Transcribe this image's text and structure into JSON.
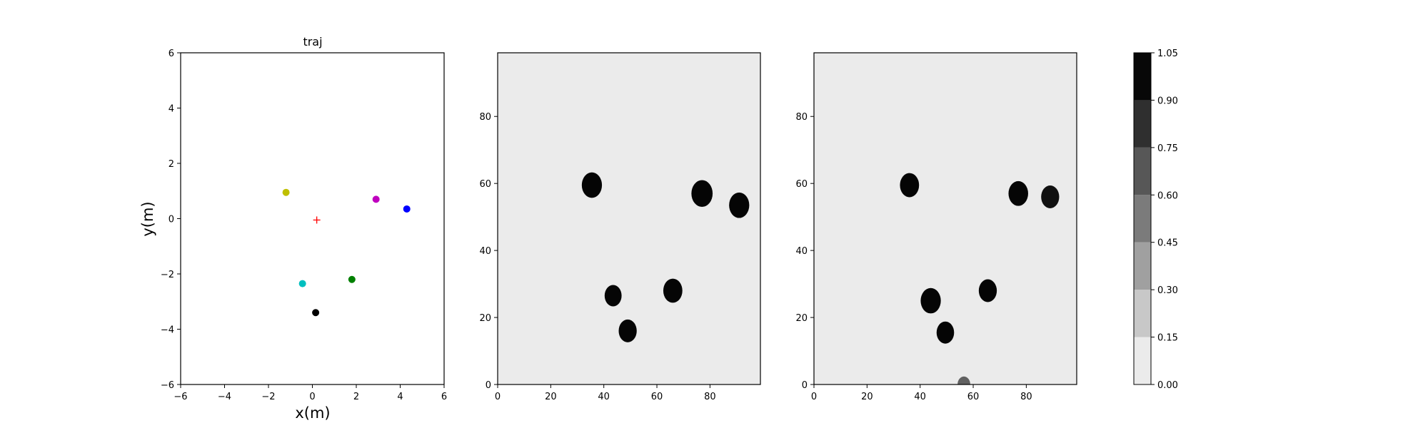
{
  "chart_data": [
    {
      "type": "scatter",
      "title": "traj",
      "xlabel": "x(m)",
      "ylabel": "y(m)",
      "xlim": [
        -6,
        6
      ],
      "ylim": [
        -6,
        6
      ],
      "xticks": [
        "−6",
        "−4",
        "−2",
        "0",
        "2",
        "4",
        "6"
      ],
      "yticks": [
        "−6",
        "−4",
        "−2",
        "0",
        "2",
        "4",
        "6"
      ],
      "grid": false,
      "points": [
        {
          "x": -1.2,
          "y": 0.95,
          "color": "#bfbf00",
          "marker": "circle"
        },
        {
          "x": 2.9,
          "y": 0.7,
          "color": "#bf00bf",
          "marker": "circle"
        },
        {
          "x": 4.3,
          "y": 0.35,
          "color": "#0000ff",
          "marker": "circle"
        },
        {
          "x": 1.8,
          "y": -2.2,
          "color": "#008000",
          "marker": "circle"
        },
        {
          "x": -0.45,
          "y": -2.35,
          "color": "#00bfbf",
          "marker": "circle"
        },
        {
          "x": 0.15,
          "y": -3.4,
          "color": "#000000",
          "marker": "circle"
        },
        {
          "x": 0.2,
          "y": -0.05,
          "color": "#ff0000",
          "marker": "plus"
        }
      ]
    },
    {
      "type": "heatmap",
      "title": "",
      "xlim": [
        0,
        99
      ],
      "ylim": [
        0,
        99
      ],
      "xticks": [
        "0",
        "20",
        "40",
        "60",
        "80"
      ],
      "yticks": [
        "0",
        "20",
        "40",
        "60",
        "80"
      ],
      "background_value": 0.0,
      "blobs": [
        {
          "x": 35.5,
          "y": 59.5,
          "r": 3.8,
          "value": 1.0
        },
        {
          "x": 43.5,
          "y": 26.5,
          "r": 3.2,
          "value": 1.0
        },
        {
          "x": 49,
          "y": 16,
          "r": 3.4,
          "value": 1.0
        },
        {
          "x": 66,
          "y": 28,
          "r": 3.6,
          "value": 1.0
        },
        {
          "x": 77,
          "y": 57,
          "r": 4.0,
          "value": 1.0
        },
        {
          "x": 91,
          "y": 53.5,
          "r": 3.8,
          "value": 1.0
        }
      ]
    },
    {
      "type": "heatmap",
      "title": "",
      "xlim": [
        0,
        99
      ],
      "ylim": [
        0,
        99
      ],
      "xticks": [
        "0",
        "20",
        "40",
        "60",
        "80"
      ],
      "yticks": [
        "0",
        "20",
        "40",
        "60",
        "80"
      ],
      "background_value": 0.0,
      "blobs": [
        {
          "x": 36,
          "y": 59.5,
          "r": 3.6,
          "value": 1.0
        },
        {
          "x": 44,
          "y": 25,
          "r": 3.8,
          "value": 1.0
        },
        {
          "x": 49.5,
          "y": 15.5,
          "r": 3.3,
          "value": 1.0
        },
        {
          "x": 65.5,
          "y": 28,
          "r": 3.4,
          "value": 1.0
        },
        {
          "x": 77,
          "y": 57,
          "r": 3.7,
          "value": 1.0
        },
        {
          "x": 89,
          "y": 56,
          "r": 3.4,
          "value": 0.95
        },
        {
          "x": 56.5,
          "y": 0,
          "r": 2.4,
          "value": 0.6
        }
      ]
    },
    {
      "type": "colorbar",
      "range": [
        0.0,
        1.05
      ],
      "levels": [
        0.0,
        0.15,
        0.3,
        0.45,
        0.6,
        0.75,
        0.9,
        1.05
      ],
      "tick_labels": [
        "0.00",
        "0.15",
        "0.30",
        "0.45",
        "0.60",
        "0.75",
        "0.90",
        "1.05"
      ],
      "band_colors": [
        "#ebebeb",
        "#c8c8c8",
        "#a0a0a0",
        "#7b7b7b",
        "#575757",
        "#2f2f2f",
        "#080808"
      ]
    }
  ]
}
